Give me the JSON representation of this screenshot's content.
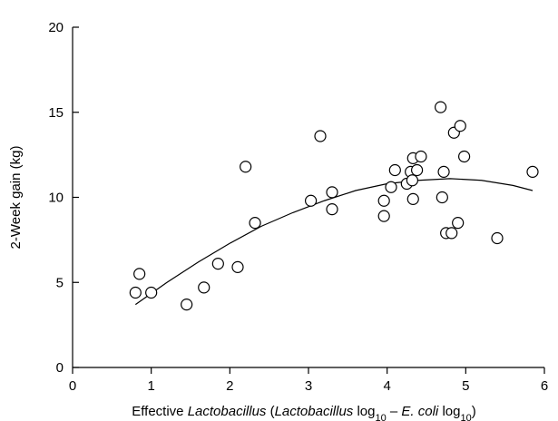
{
  "chart_data": {
    "type": "scatter",
    "title": "",
    "ylabel": "2-Week gain (kg)",
    "xlabel": {
      "t1": "Effective ",
      "t2": "Lactobacillus",
      "t3": " (",
      "t4": "Lactobacillus",
      "t5": " log",
      "t6": "10",
      "t7": " – ",
      "t8": "E. coli",
      "t9": " log",
      "t10": "10",
      "t11": ")"
    },
    "xlim": [
      0,
      6
    ],
    "ylim": [
      0,
      20
    ],
    "x_ticks": [
      0,
      1,
      2,
      3,
      4,
      5,
      6
    ],
    "x_tick_labels": [
      "0",
      "1",
      "2",
      "3",
      "4",
      "5",
      "6"
    ],
    "y_ticks": [
      0,
      5,
      10,
      15,
      20
    ],
    "y_tick_labels": [
      "0",
      "5",
      "10",
      "15",
      "20"
    ],
    "grid": false,
    "points": [
      {
        "x": 0.8,
        "y": 4.4
      },
      {
        "x": 0.85,
        "y": 5.5
      },
      {
        "x": 1.0,
        "y": 4.4
      },
      {
        "x": 1.45,
        "y": 3.7
      },
      {
        "x": 1.67,
        "y": 4.7
      },
      {
        "x": 1.85,
        "y": 6.1
      },
      {
        "x": 2.1,
        "y": 5.9
      },
      {
        "x": 2.2,
        "y": 11.8
      },
      {
        "x": 2.32,
        "y": 8.5
      },
      {
        "x": 3.03,
        "y": 9.8
      },
      {
        "x": 3.15,
        "y": 13.6
      },
      {
        "x": 3.3,
        "y": 9.3
      },
      {
        "x": 3.3,
        "y": 10.3
      },
      {
        "x": 3.96,
        "y": 9.8
      },
      {
        "x": 3.96,
        "y": 8.9
      },
      {
        "x": 4.05,
        "y": 10.6
      },
      {
        "x": 4.1,
        "y": 11.6
      },
      {
        "x": 4.25,
        "y": 10.8
      },
      {
        "x": 4.3,
        "y": 11.5
      },
      {
        "x": 4.32,
        "y": 11.0
      },
      {
        "x": 4.33,
        "y": 12.3
      },
      {
        "x": 4.33,
        "y": 9.9
      },
      {
        "x": 4.38,
        "y": 11.6
      },
      {
        "x": 4.43,
        "y": 12.4
      },
      {
        "x": 4.68,
        "y": 15.3
      },
      {
        "x": 4.7,
        "y": 10.0
      },
      {
        "x": 4.72,
        "y": 11.5
      },
      {
        "x": 4.75,
        "y": 7.9
      },
      {
        "x": 4.82,
        "y": 7.9
      },
      {
        "x": 4.85,
        "y": 13.8
      },
      {
        "x": 4.9,
        "y": 8.5
      },
      {
        "x": 4.93,
        "y": 14.2
      },
      {
        "x": 4.98,
        "y": 12.4
      },
      {
        "x": 5.4,
        "y": 7.6
      },
      {
        "x": 5.85,
        "y": 11.5
      }
    ],
    "fit_line": {
      "type": "quadratic",
      "x": [
        0.8,
        1.2,
        1.6,
        2.0,
        2.4,
        2.8,
        3.2,
        3.6,
        4.0,
        4.4,
        4.8,
        5.2,
        5.6,
        5.85
      ],
      "y": [
        3.7,
        5.0,
        6.2,
        7.3,
        8.3,
        9.1,
        9.8,
        10.4,
        10.8,
        11.0,
        11.1,
        11.0,
        10.7,
        10.4
      ]
    }
  }
}
